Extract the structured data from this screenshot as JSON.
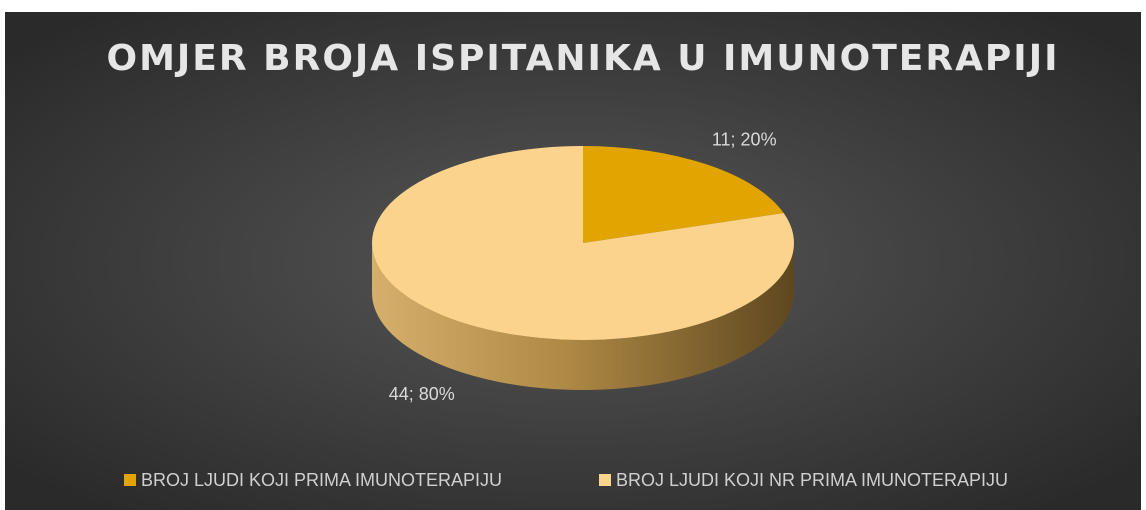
{
  "chart_data": {
    "type": "pie",
    "title": "OMJER BROJA ISPITANIKA U IMUNOTERAPIJI",
    "categories": [
      "BROJ LJUDI KOJI PRIMA IMUNOTERAPIJU",
      "BROJ LJUDI KOJI NR PRIMA IMUNOTERAPIJU"
    ],
    "values": [
      11,
      44
    ],
    "value_labels": [
      "11; 20%",
      "44; 80%"
    ],
    "colors": [
      "#e2a400",
      "#fbd38c"
    ],
    "legend": "bottom"
  }
}
